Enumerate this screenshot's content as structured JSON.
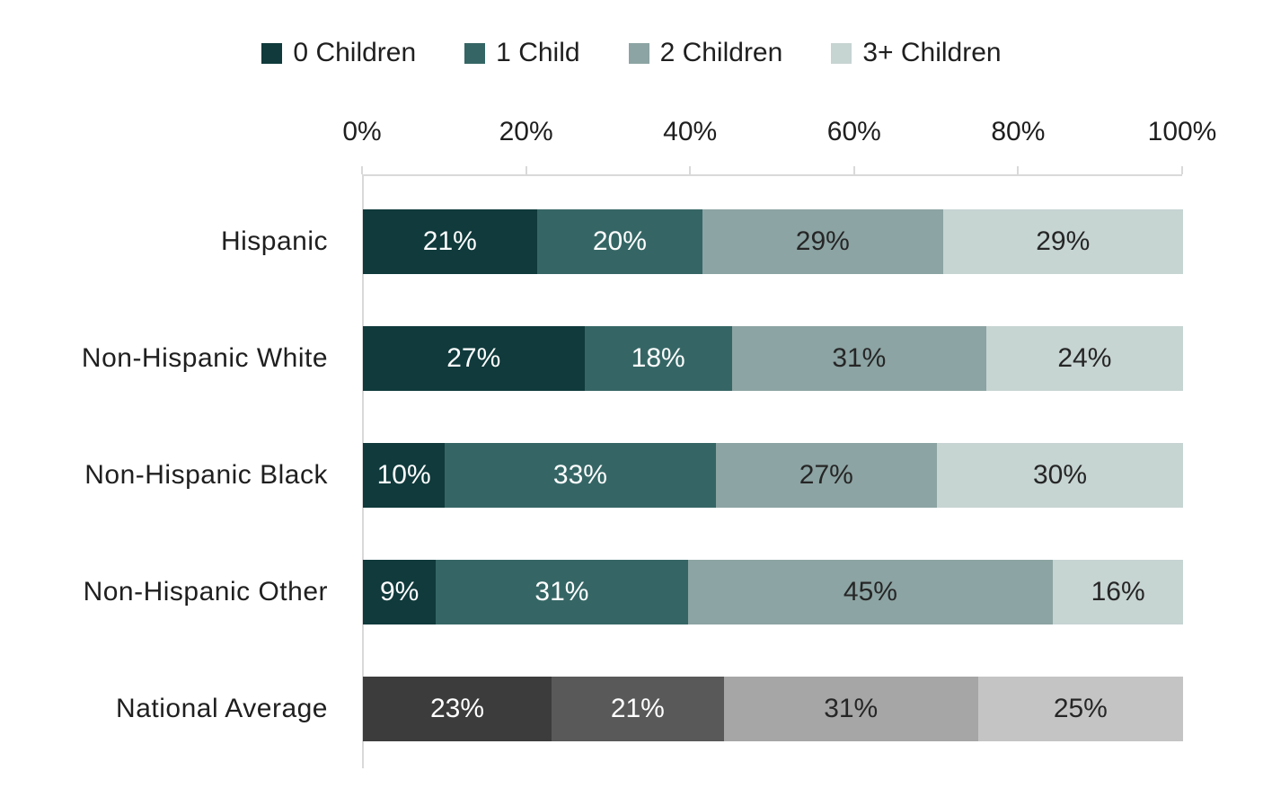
{
  "chart_data": {
    "type": "bar",
    "orientation": "horizontal",
    "stacked": true,
    "title": "",
    "xlabel": "",
    "ylabel": "",
    "x_axis": {
      "position": "top",
      "range": [
        0,
        100
      ],
      "ticks": [
        "0%",
        "20%",
        "40%",
        "60%",
        "80%",
        "100%"
      ]
    },
    "legend_position": "top",
    "categories": [
      "Hispanic",
      "Non-Hispanic White",
      "Non-Hispanic Black",
      "Non-Hispanic Other",
      "National Average"
    ],
    "series": [
      {
        "name": "0 Children",
        "values": [
          21,
          27,
          10,
          9,
          23
        ]
      },
      {
        "name": "1 Child",
        "values": [
          20,
          18,
          33,
          31,
          21
        ]
      },
      {
        "name": "2 Children",
        "values": [
          29,
          31,
          27,
          45,
          31
        ]
      },
      {
        "name": "3+ Children",
        "values": [
          29,
          24,
          30,
          16,
          25
        ]
      }
    ],
    "value_suffix": "%",
    "grayscale_category": "National Average",
    "colors": {
      "series_default": [
        "#103a3c",
        "#356665",
        "#8ca4a3",
        "#c6d4d2"
      ],
      "national_average": [
        "#3c3c3c",
        "#595959",
        "#a6a6a6",
        "#c4c4c4"
      ],
      "axis_line": "#d9d9d9",
      "label_light": "#ffffff",
      "label_dark": "#262626"
    }
  }
}
